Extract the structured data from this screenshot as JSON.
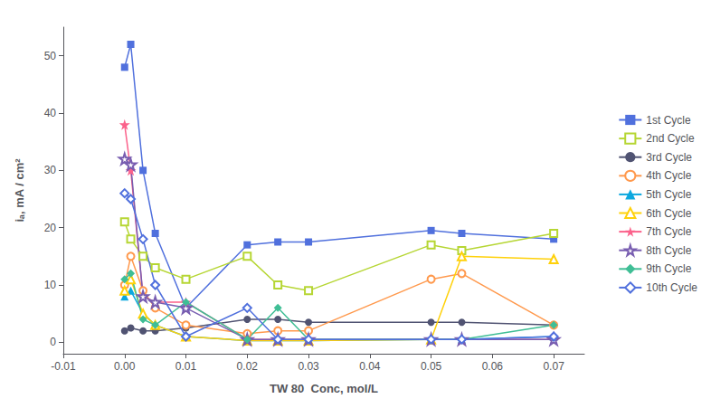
{
  "chart_data": {
    "type": "line",
    "xlabel": "TW 80  Conc, mol/L",
    "ylabel": "iₐ, mA / cm²",
    "x": [
      0.0,
      0.001,
      0.003,
      0.005,
      0.01,
      0.02,
      0.025,
      0.03,
      0.05,
      0.055,
      0.07
    ],
    "series": [
      {
        "name": "1st Cycle",
        "marker": "square",
        "values": [
          48,
          52,
          30,
          19,
          6,
          17,
          17.5,
          17.5,
          19.5,
          19,
          18
        ]
      },
      {
        "name": "2nd Cycle",
        "marker": "open-square",
        "values": [
          21,
          18,
          15,
          13,
          11,
          15,
          10,
          9,
          17,
          16,
          19
        ]
      },
      {
        "name": "3rd Cycle",
        "marker": "circle",
        "values": [
          2,
          2.5,
          2,
          2,
          2.5,
          4,
          4,
          3.5,
          3.5,
          3.5,
          3
        ]
      },
      {
        "name": "4th Cycle",
        "marker": "open-circle",
        "values": [
          10,
          15,
          9,
          6,
          3,
          1.5,
          2,
          2,
          11,
          12,
          3
        ]
      },
      {
        "name": "5th Cycle",
        "marker": "triangle",
        "values": [
          8,
          9,
          5,
          3,
          1,
          0.3,
          0.3,
          0.3,
          0.5,
          0.5,
          1
        ]
      },
      {
        "name": "6th Cycle",
        "marker": "open-triangle",
        "values": [
          9,
          11,
          5,
          3,
          1,
          0.3,
          0.3,
          0.3,
          0.5,
          15,
          14.5
        ]
      },
      {
        "name": "7th Cycle",
        "marker": "star",
        "values": [
          38,
          30,
          8,
          7,
          7,
          0.5,
          0.5,
          0.5,
          0.5,
          0.5,
          0.5
        ]
      },
      {
        "name": "8th Cycle",
        "marker": "open-star",
        "values": [
          32,
          31,
          8,
          7,
          6,
          0.5,
          0.5,
          0.5,
          0.5,
          0.5,
          0.5
        ]
      },
      {
        "name": "9th Cycle",
        "marker": "diamond",
        "values": [
          11,
          12,
          4,
          3,
          7,
          0.5,
          6,
          0.5,
          0.5,
          0.5,
          3
        ]
      },
      {
        "name": "10th Cycle",
        "marker": "open-diamond",
        "values": [
          26,
          25,
          18,
          10,
          1,
          6,
          0.5,
          0.5,
          0.5,
          0.5,
          1
        ]
      }
    ],
    "xlim": [
      -0.01,
      0.075
    ],
    "xticks": [
      -0.01,
      {
        "value": 0.0,
        "label": "0.00"
      },
      0.01,
      0.02,
      0.03,
      0.04,
      0.05,
      0.06,
      0.07
    ],
    "ylim": [
      -2,
      55
    ],
    "yticks": [
      0,
      10,
      20,
      30,
      40,
      50
    ],
    "grid": false,
    "legend": "right"
  }
}
